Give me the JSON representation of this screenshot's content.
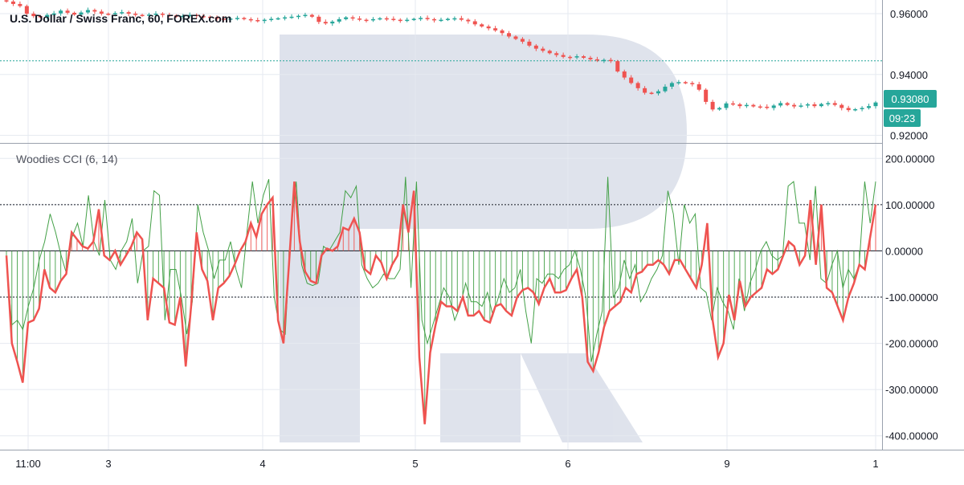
{
  "header": {
    "symbol_title": "U.S. Dollar / Swiss Franc, 60, FOREX.com"
  },
  "indicator": {
    "title": "Woodies CCI (6, 14)"
  },
  "price_badges": {
    "last_price": "0.93080",
    "countdown": "09:23"
  },
  "colors": {
    "up": "#26a69a",
    "down": "#ef5350",
    "cci_line": "#ef5350",
    "turbo_line": "#43a047",
    "badge_bg": "#26a69a",
    "watermark": "#d8dde8",
    "grid": "#e6eaf0"
  },
  "chart_data": [
    {
      "type": "candlestick",
      "pane": "price",
      "title": "U.S. Dollar / Swiss Franc, 60, FOREX.com",
      "y_ticks": [
        "0.96000",
        "0.94000",
        "0.92000"
      ],
      "ylim": [
        0.9175,
        0.9645
      ],
      "reference_line": 0.9445,
      "last_price": 0.9308,
      "x_tick_labels": [
        "11:00",
        "3",
        "4",
        "5",
        "6",
        "9",
        "1"
      ],
      "close_series": [
        0.964,
        0.9632,
        0.9625,
        0.96,
        0.9592,
        0.9588,
        0.9596,
        0.9601,
        0.961,
        0.9603,
        0.9597,
        0.9604,
        0.9612,
        0.9607,
        0.96,
        0.9598,
        0.9602,
        0.9605,
        0.96,
        0.9596,
        0.9594,
        0.9597,
        0.96,
        0.9596,
        0.9594,
        0.959,
        0.9593,
        0.9596,
        0.9592,
        0.959,
        0.9588,
        0.9584,
        0.958,
        0.9584,
        0.9586,
        0.9582,
        0.9579,
        0.9576,
        0.958,
        0.9583,
        0.9585,
        0.9588,
        0.959,
        0.9593,
        0.9596,
        0.959,
        0.9573,
        0.9568,
        0.9574,
        0.9582,
        0.9588,
        0.9584,
        0.958,
        0.9579,
        0.9582,
        0.9585,
        0.9583,
        0.958,
        0.9578,
        0.958,
        0.9583,
        0.9586,
        0.9582,
        0.9579,
        0.958,
        0.9583,
        0.9585,
        0.958,
        0.9575,
        0.9565,
        0.9558,
        0.9552,
        0.9545,
        0.9536,
        0.9525,
        0.9517,
        0.9508,
        0.9495,
        0.9485,
        0.9478,
        0.947,
        0.9464,
        0.9458,
        0.9456,
        0.946,
        0.9455,
        0.945,
        0.9446,
        0.9448,
        0.9444,
        0.941,
        0.939,
        0.9372,
        0.9355,
        0.934,
        0.9338,
        0.9345,
        0.936,
        0.9372,
        0.9375,
        0.9372,
        0.9368,
        0.935,
        0.931,
        0.9285,
        0.929,
        0.9305,
        0.9302,
        0.9296,
        0.93,
        0.9295,
        0.9294,
        0.929,
        0.9298,
        0.9306,
        0.93,
        0.9295,
        0.9298,
        0.9302,
        0.9296,
        0.9303,
        0.9306,
        0.93,
        0.929,
        0.9283,
        0.9286,
        0.929,
        0.9296,
        0.9308
      ]
    },
    {
      "type": "line",
      "pane": "indicator",
      "title": "Woodies CCI (6, 14)",
      "y_ticks": [
        "200.00000",
        "100.00000",
        "0.00000",
        "-100.00000",
        "-200.00000",
        "-300.00000",
        "-400.00000"
      ],
      "ylim": [
        -430,
        230
      ],
      "reference_lines": [
        100,
        0,
        -100
      ],
      "series": [
        {
          "values": [
            -10,
            -200,
            -240,
            -285,
            -155,
            -150,
            -125,
            -40,
            -80,
            -90,
            -65,
            -50,
            40,
            25,
            10,
            5,
            20,
            90,
            -10,
            -20,
            0,
            -30,
            -10,
            10,
            40,
            25,
            -150,
            -60,
            -70,
            -80,
            -155,
            -160,
            -100,
            -250,
            -120,
            40,
            -40,
            -65,
            -150,
            -80,
            -70,
            -55,
            -30,
            0,
            20,
            60,
            30,
            80,
            100,
            115,
            -150,
            -200,
            -30,
            150,
            20,
            -45,
            -65,
            -70,
            -10,
            5,
            0,
            10,
            50,
            45,
            70,
            40,
            -40,
            -50,
            -10,
            -25,
            -60,
            -30,
            -10,
            100,
            40,
            130,
            -230,
            -375,
            -220,
            -160,
            -110,
            -120,
            -120,
            -130,
            -100,
            -140,
            -140,
            -130,
            -150,
            -155,
            -120,
            -115,
            -130,
            -140,
            -100,
            -85,
            -80,
            -90,
            -115,
            -80,
            -60,
            -90,
            -90,
            -85,
            -60,
            -40,
            -100,
            -240,
            -260,
            -220,
            -165,
            -130,
            -120,
            -110,
            -80,
            -90,
            -50,
            -45,
            -30,
            -30,
            -20,
            -30,
            -50,
            -20,
            -20,
            -40,
            -60,
            -80,
            -30,
            60,
            -150,
            -230,
            -200,
            -95,
            -150,
            -65,
            -120,
            -100,
            -90,
            -80,
            -40,
            -50,
            -40,
            -10,
            20,
            10,
            -30,
            -10,
            110,
            -30,
            100,
            -80,
            -90,
            -120,
            -150,
            -100,
            -70,
            -30,
            -40,
            30,
            100
          ]
        },
        {
          "values": [
            -20,
            -160,
            -150,
            -170,
            -120,
            -80,
            -20,
            20,
            80,
            40,
            -10,
            -50,
            30,
            60,
            10,
            120,
            20,
            -10,
            110,
            -20,
            -40,
            0,
            20,
            70,
            -70,
            0,
            10,
            130,
            120,
            -150,
            -40,
            -40,
            -100,
            -180,
            -110,
            100,
            40,
            0,
            -60,
            -20,
            -20,
            20,
            -40,
            -80,
            40,
            150,
            60,
            120,
            155,
            -100,
            -170,
            -180,
            40,
            150,
            -30,
            -70,
            -75,
            -70,
            10,
            0,
            20,
            40,
            130,
            115,
            140,
            -30,
            -60,
            -80,
            -70,
            -50,
            -60,
            -60,
            -40,
            160,
            -80,
            150,
            -150,
            -200,
            -160,
            -120,
            -80,
            -100,
            -150,
            -120,
            -70,
            -110,
            -110,
            -120,
            -90,
            -140,
            -100,
            -60,
            -90,
            -80,
            -40,
            -130,
            -200,
            -60,
            -70,
            -50,
            -50,
            -60,
            -40,
            -30,
            0,
            -40,
            -100,
            -240,
            -180,
            -130,
            160,
            -100,
            -80,
            -20,
            -60,
            -30,
            -110,
            -90,
            -60,
            -40,
            -10,
            130,
            80,
            -30,
            100,
            60,
            80,
            -80,
            -90,
            -150,
            -80,
            -110,
            -130,
            -170,
            -60,
            -130,
            -70,
            -40,
            0,
            20,
            -10,
            -20,
            -10,
            140,
            150,
            60,
            60,
            -20,
            140,
            -60,
            -70,
            -30,
            0,
            -80,
            -40,
            -60,
            -30,
            150,
            60,
            150
          ]
        }
      ]
    }
  ]
}
